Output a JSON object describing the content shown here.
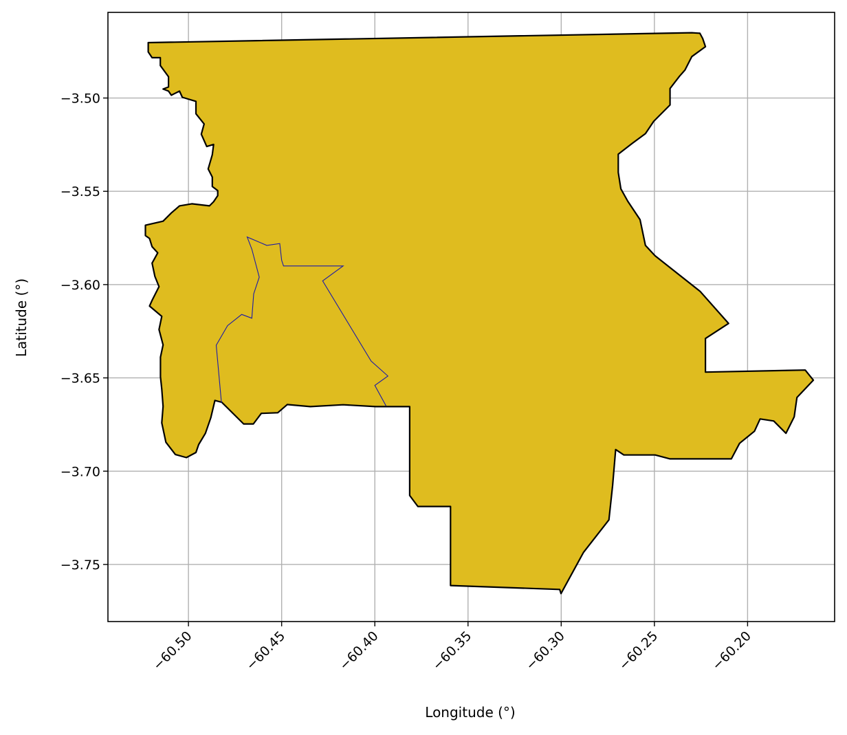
{
  "chart_data": {
    "type": "map",
    "xlabel": "Longitude (°)",
    "ylabel": "Latitude (°)",
    "xlim": [
      -60.5432,
      -60.1533
    ],
    "ylim": [
      -3.7806,
      -3.4541
    ],
    "grid": true,
    "x_ticks": [
      {
        "value": -60.5,
        "label": "−60.50"
      },
      {
        "value": -60.45,
        "label": "−60.45"
      },
      {
        "value": -60.4,
        "label": "−60.40"
      },
      {
        "value": -60.35,
        "label": "−60.35"
      },
      {
        "value": -60.3,
        "label": "−60.30"
      },
      {
        "value": -60.25,
        "label": "−60.25"
      },
      {
        "value": -60.2,
        "label": "−60.20"
      }
    ],
    "y_ticks": [
      {
        "value": -3.5,
        "label": "−3.50"
      },
      {
        "value": -3.55,
        "label": "−3.55"
      },
      {
        "value": -3.6,
        "label": "−3.60"
      },
      {
        "value": -3.65,
        "label": "−3.65"
      },
      {
        "value": -3.7,
        "label": "−3.70"
      },
      {
        "value": -3.75,
        "label": "−3.75"
      }
    ],
    "region": {
      "fill": "#dfbc1f",
      "edge": "#000000",
      "outline": [
        [
          -60.5216,
          -3.4703
        ],
        [
          -60.5216,
          -3.4753
        ],
        [
          -60.5195,
          -3.4784
        ],
        [
          -60.5151,
          -3.4784
        ],
        [
          -60.5151,
          -3.4826
        ],
        [
          -60.5107,
          -3.4886
        ],
        [
          -60.5107,
          -3.4941
        ],
        [
          -60.5136,
          -3.4952
        ],
        [
          -60.5107,
          -3.4963
        ],
        [
          -60.5092,
          -3.4985
        ],
        [
          -60.5048,
          -3.4963
        ],
        [
          -60.5033,
          -3.4996
        ],
        [
          -60.496,
          -3.5018
        ],
        [
          -60.496,
          -3.5084
        ],
        [
          -60.4916,
          -3.5139
        ],
        [
          -60.4931,
          -3.5194
        ],
        [
          -60.4902,
          -3.526
        ],
        [
          -60.4865,
          -3.5249
        ],
        [
          -60.4872,
          -3.5304
        ],
        [
          -60.4894,
          -3.538
        ],
        [
          -60.4872,
          -3.5424
        ],
        [
          -60.4872,
          -3.5474
        ],
        [
          -60.4843,
          -3.5496
        ],
        [
          -60.4843,
          -3.5523
        ],
        [
          -60.4865,
          -3.5556
        ],
        [
          -60.4887,
          -3.5578
        ],
        [
          -60.4982,
          -3.5567
        ],
        [
          -60.5048,
          -3.5578
        ],
        [
          -60.5092,
          -3.5616
        ],
        [
          -60.5136,
          -3.566
        ],
        [
          -60.5231,
          -3.5682
        ],
        [
          -60.5231,
          -3.5737
        ],
        [
          -60.5209,
          -3.5753
        ],
        [
          -60.5195,
          -3.5797
        ],
        [
          -60.5165,
          -3.583
        ],
        [
          -60.5195,
          -3.5885
        ],
        [
          -60.518,
          -3.5956
        ],
        [
          -60.5158,
          -3.6011
        ],
        [
          -60.5194,
          -3.6082
        ],
        [
          -60.5209,
          -3.6115
        ],
        [
          -60.5143,
          -3.617
        ],
        [
          -60.5158,
          -3.6241
        ],
        [
          -60.5136,
          -3.6323
        ],
        [
          -60.515,
          -3.6389
        ],
        [
          -60.515,
          -3.6494
        ],
        [
          -60.5143,
          -3.656
        ],
        [
          -60.5136,
          -3.6653
        ],
        [
          -60.5143,
          -3.6741
        ],
        [
          -60.5121,
          -3.6845
        ],
        [
          -60.507,
          -3.6911
        ],
        [
          -60.5011,
          -3.6927
        ],
        [
          -60.496,
          -3.69
        ],
        [
          -60.4945,
          -3.6857
        ],
        [
          -60.4909,
          -3.6797
        ],
        [
          -60.488,
          -3.6714
        ],
        [
          -60.4858,
          -3.6621
        ],
        [
          -60.4821,
          -3.6631
        ],
        [
          -60.4704,
          -3.6747
        ],
        [
          -60.4652,
          -3.6747
        ],
        [
          -60.4609,
          -3.669
        ],
        [
          -60.4521,
          -3.6687
        ],
        [
          -60.447,
          -3.6643
        ],
        [
          -60.4346,
          -3.6654
        ],
        [
          -60.417,
          -3.6644
        ],
        [
          -60.3995,
          -3.6654
        ],
        [
          -60.3813,
          -3.6654
        ],
        [
          -60.3813,
          -3.713
        ],
        [
          -60.3769,
          -3.7189
        ],
        [
          -60.3594,
          -3.7189
        ],
        [
          -60.3594,
          -3.7613
        ],
        [
          -60.3008,
          -3.7634
        ],
        [
          -60.3001,
          -3.7656
        ],
        [
          -60.2881,
          -3.7436
        ],
        [
          -60.2744,
          -3.7261
        ],
        [
          -60.2724,
          -3.7076
        ],
        [
          -60.2708,
          -3.6884
        ],
        [
          -60.2664,
          -3.6913
        ],
        [
          -60.2496,
          -3.6913
        ],
        [
          -60.2416,
          -3.6934
        ],
        [
          -60.2226,
          -3.6934
        ],
        [
          -60.2087,
          -3.6934
        ],
        [
          -60.2043,
          -3.6851
        ],
        [
          -60.1963,
          -3.6786
        ],
        [
          -60.1933,
          -3.672
        ],
        [
          -60.186,
          -3.6731
        ],
        [
          -60.1794,
          -3.6797
        ],
        [
          -60.175,
          -3.6709
        ],
        [
          -60.1735,
          -3.6605
        ],
        [
          -60.1647,
          -3.6512
        ],
        [
          -60.1691,
          -3.6458
        ],
        [
          -60.2226,
          -3.6469
        ],
        [
          -60.2226,
          -3.6289
        ],
        [
          -60.2102,
          -3.6208
        ],
        [
          -60.2255,
          -3.6036
        ],
        [
          -60.2497,
          -3.5845
        ],
        [
          -60.2548,
          -3.579
        ],
        [
          -60.2577,
          -3.5652
        ],
        [
          -60.2643,
          -3.5553
        ],
        [
          -60.268,
          -3.5487
        ],
        [
          -60.2694,
          -3.5399
        ],
        [
          -60.2694,
          -3.5301
        ],
        [
          -60.2621,
          -3.5245
        ],
        [
          -60.2548,
          -3.5191
        ],
        [
          -60.2504,
          -3.5125
        ],
        [
          -60.2416,
          -3.5037
        ],
        [
          -60.2416,
          -3.4949
        ],
        [
          -60.2365,
          -3.4883
        ],
        [
          -60.2336,
          -3.485
        ],
        [
          -60.2299,
          -3.4778
        ],
        [
          -60.2226,
          -3.4725
        ],
        [
          -60.2241,
          -3.4681
        ],
        [
          -60.2256,
          -3.4653
        ],
        [
          -60.2299,
          -3.465
        ],
        [
          -60.5216,
          -3.4703
        ]
      ]
    },
    "inner_boundary": {
      "stroke": "#1a1aa8",
      "line": [
        [
          -60.4823,
          -3.6633
        ],
        [
          -60.4851,
          -3.6325
        ],
        [
          -60.479,
          -3.622
        ],
        [
          -60.4714,
          -3.616
        ],
        [
          -60.466,
          -3.618
        ],
        [
          -60.465,
          -3.605
        ],
        [
          -60.462,
          -3.596
        ],
        [
          -60.466,
          -3.581
        ],
        [
          -60.4685,
          -3.5745
        ],
        [
          -60.458,
          -3.579
        ],
        [
          -60.451,
          -3.578
        ],
        [
          -60.45,
          -3.587
        ],
        [
          -60.449,
          -3.59
        ],
        [
          -60.417,
          -3.59
        ],
        [
          -60.428,
          -3.598
        ],
        [
          -60.402,
          -3.641
        ],
        [
          -60.393,
          -3.649
        ],
        [
          -60.4,
          -3.654
        ],
        [
          -60.394,
          -3.665
        ]
      ]
    }
  }
}
